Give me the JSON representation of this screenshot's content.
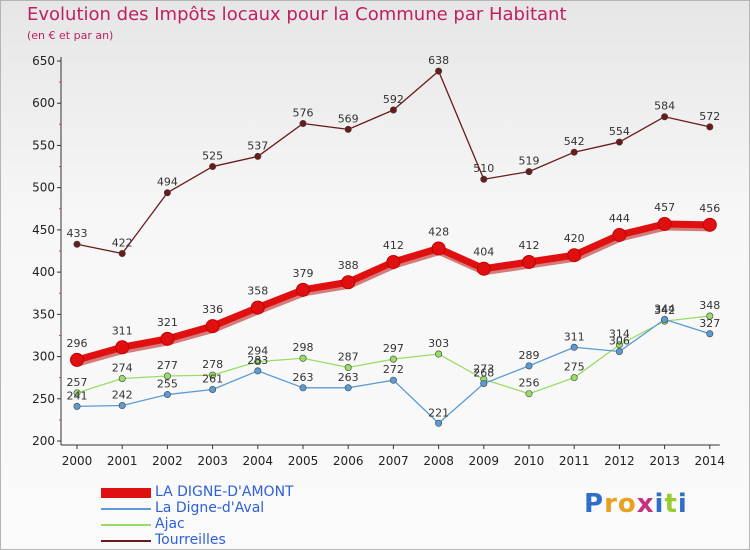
{
  "chart_data": {
    "type": "line",
    "title": "Evolution des Impôts locaux pour la Commune par Habitant",
    "subtitle": "(en € et par an)",
    "categories": [
      "2000",
      "2001",
      "2002",
      "2003",
      "2004",
      "2005",
      "2006",
      "2007",
      "2008",
      "2009",
      "2010",
      "2011",
      "2012",
      "2013",
      "2014"
    ],
    "ylim": [
      200,
      650
    ],
    "yticks": [
      "200",
      "250",
      "300",
      "350",
      "400",
      "450",
      "500",
      "550",
      "600",
      "650"
    ],
    "grid": false,
    "legend_position": "bottom-left",
    "series": [
      {
        "name": "Tourreilles",
        "color": "#6b1a1a",
        "values": [
          433,
          422,
          494,
          525,
          537,
          576,
          569,
          592,
          638,
          510,
          519,
          542,
          554,
          584,
          572
        ],
        "labels": [
          "433",
          "422",
          "494",
          "525",
          "537",
          "576",
          "569",
          "592",
          "638",
          "510",
          "519",
          "542",
          "554",
          "584",
          "572"
        ]
      },
      {
        "name": "Ajac",
        "color": "#99dd66",
        "values": [
          257,
          274,
          277,
          278,
          294,
          298,
          287,
          297,
          303,
          273,
          256,
          275,
          314,
          342,
          348
        ],
        "labels": [
          "257",
          "274",
          "277",
          "278",
          "294",
          "298",
          "287",
          "297",
          "303",
          "273",
          "256",
          "275",
          "314",
          "342",
          "348"
        ]
      },
      {
        "name": "La Digne-d'Aval",
        "color": "#5b9bd5",
        "values": [
          241,
          242,
          255,
          261,
          283,
          263,
          263,
          272,
          221,
          268,
          289,
          311,
          306,
          344,
          327
        ],
        "labels": [
          "241",
          "242",
          "255",
          "261",
          "283",
          "263",
          "263",
          "272",
          "221",
          "268",
          "289",
          "311",
          "306",
          "344",
          "327"
        ]
      },
      {
        "name": "LA DIGNE-D'AMONT",
        "color": "#e01010",
        "values": [
          296,
          311,
          321,
          336,
          358,
          379,
          388,
          412,
          428,
          404,
          412,
          420,
          444,
          457,
          456
        ],
        "labels": [
          "296",
          "311",
          "321",
          "336",
          "358",
          "379",
          "388",
          "412",
          "428",
          "404",
          "412",
          "420",
          "444",
          "457",
          "456"
        ]
      }
    ],
    "legend": [
      {
        "name": "LA DIGNE-D'AMONT",
        "color": "#e01010",
        "thick": true
      },
      {
        "name": "La Digne-d'Aval",
        "color": "#5b9bd5",
        "thick": false
      },
      {
        "name": "Ajac",
        "color": "#99dd66",
        "thick": false
      },
      {
        "name": "Tourreilles",
        "color": "#6b1a1a",
        "thick": false
      }
    ]
  },
  "logo": {
    "text": "Proxiti",
    "letters": [
      {
        "ch": "P",
        "color": "#2f6fc8"
      },
      {
        "ch": "r",
        "color": "#e8a020"
      },
      {
        "ch": "o",
        "color": "#e8a020"
      },
      {
        "ch": "x",
        "color": "#c83080"
      },
      {
        "ch": "i",
        "color": "#2f6fc8"
      },
      {
        "ch": "t",
        "color": "#99cc33"
      },
      {
        "ch": "i",
        "color": "#2f6fc8"
      }
    ]
  }
}
